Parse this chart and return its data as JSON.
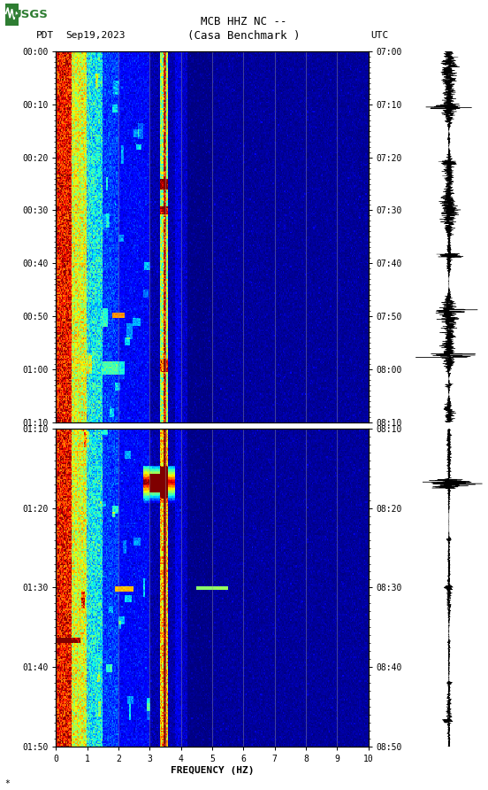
{
  "title_line1": "MCB HHZ NC --",
  "title_line2": "(Casa Benchmark )",
  "date_label": "Sep19,2023",
  "left_tz": "PDT",
  "right_tz": "UTC",
  "fig_width": 5.52,
  "fig_height": 8.92,
  "bg_color": "#ffffff",
  "freq_min": 0,
  "freq_max": 10,
  "freq_ticks": [
    0,
    1,
    2,
    3,
    4,
    5,
    6,
    7,
    8,
    9,
    10
  ],
  "freq_label": "FREQUENCY (HZ)",
  "left_yticks_p1": [
    "00:00",
    "00:10",
    "00:20",
    "00:30",
    "00:40",
    "00:50",
    "01:00",
    "01:10"
  ],
  "left_yticks_p2": [
    "01:10",
    "01:20",
    "01:30",
    "01:40",
    "01:50"
  ],
  "right_yticks_p1": [
    "07:00",
    "07:10",
    "07:20",
    "07:30",
    "07:40",
    "07:50",
    "08:00",
    "08:10"
  ],
  "right_yticks_p2": [
    "08:10",
    "08:20",
    "08:30",
    "08:40",
    "08:50"
  ],
  "vertical_lines_freq": [
    1,
    2,
    3,
    3.5,
    4,
    5,
    6,
    7,
    8,
    9
  ],
  "vertical_line_color": "#999999",
  "usgs_logo_color": "#2e7d32",
  "font_family": "monospace",
  "font_size_title": 9,
  "font_size_labels": 8,
  "font_size_ticks": 7,
  "waveform_color": "#000000",
  "p1_minutes": 70,
  "p2_minutes": 60
}
